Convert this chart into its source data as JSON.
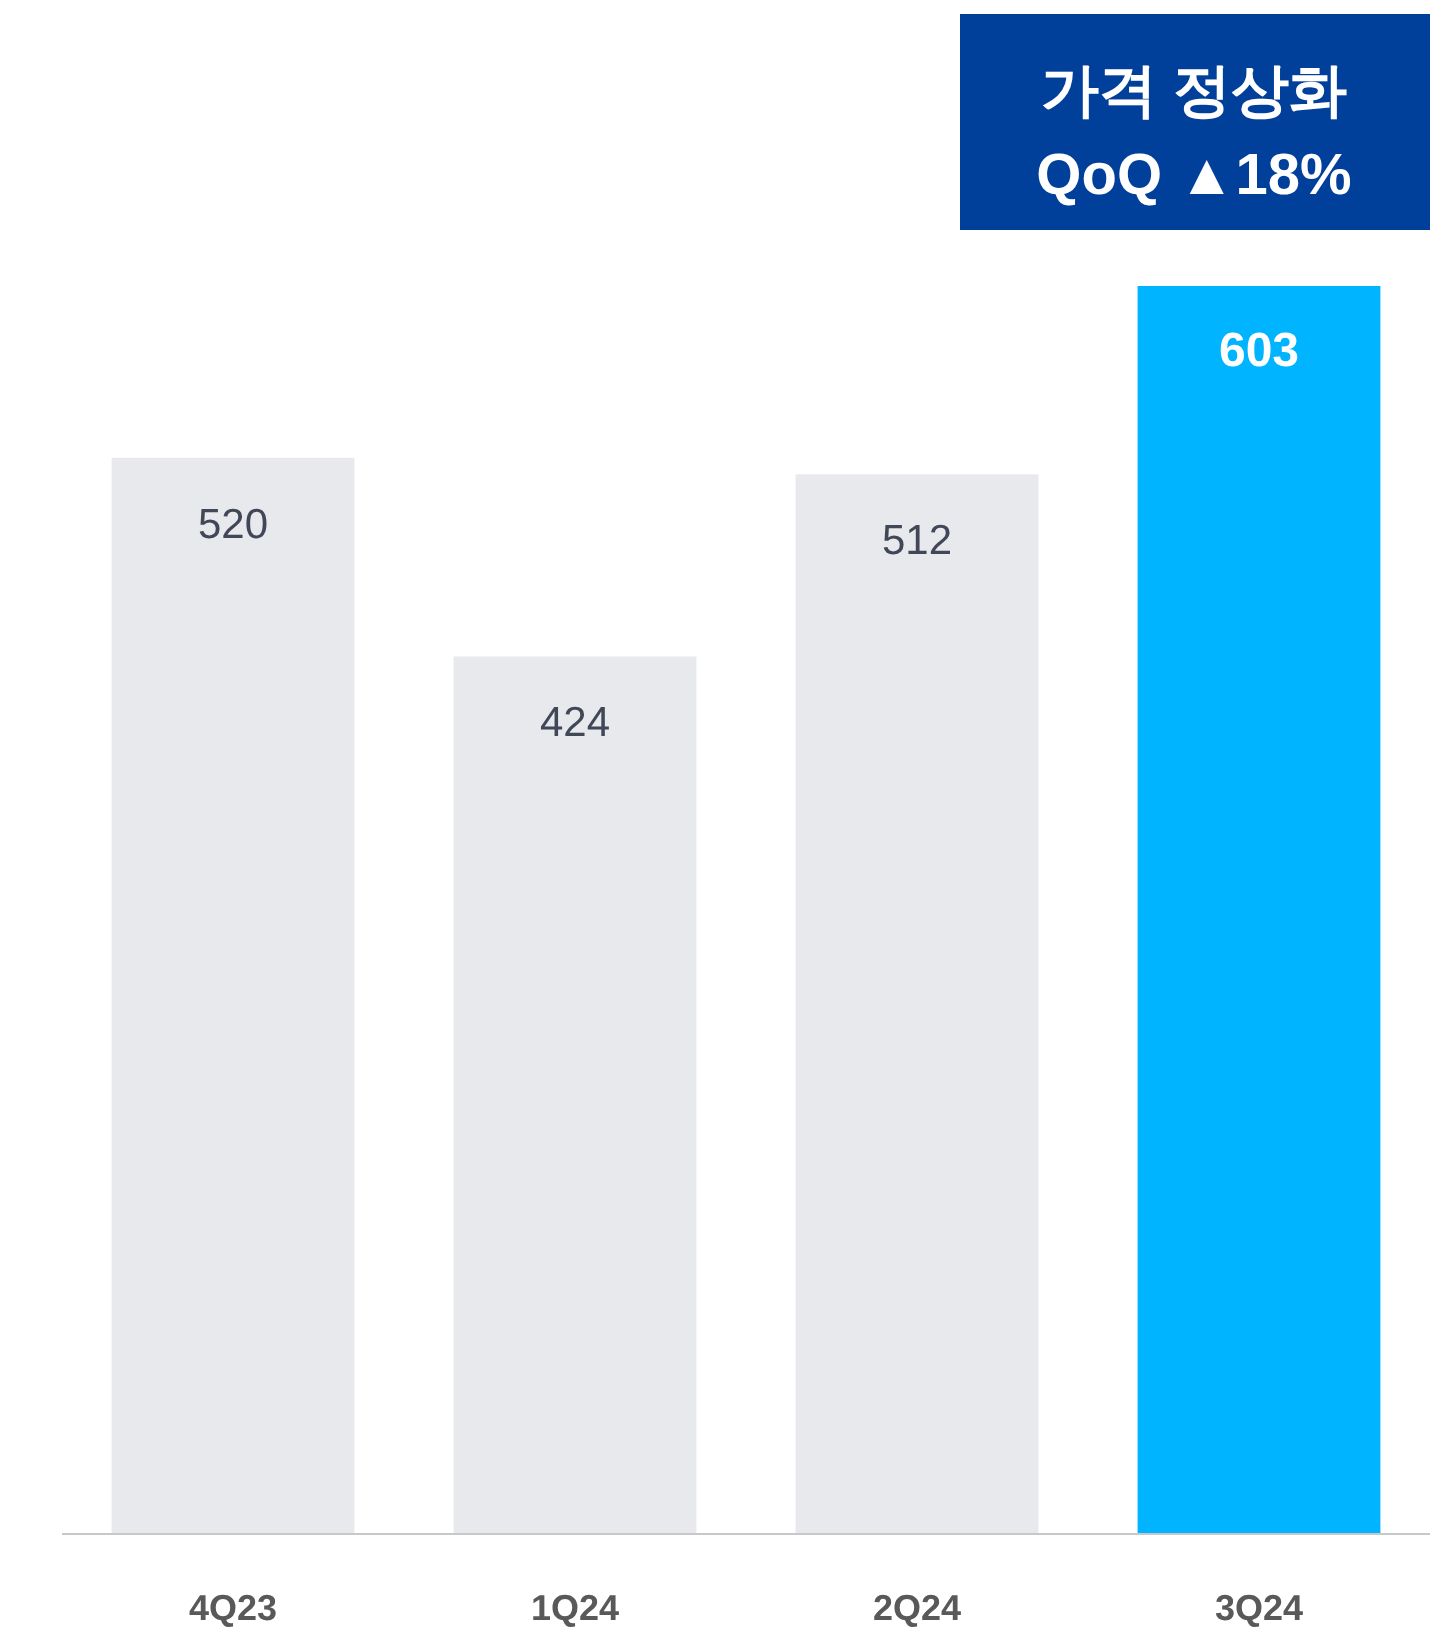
{
  "chart_data": {
    "type": "bar",
    "categories": [
      "4Q23",
      "1Q24",
      "2Q24",
      "3Q24"
    ],
    "values": [
      520,
      424,
      512,
      603
    ],
    "colors": [
      "#e8e9ed",
      "#e8e9ed",
      "#e8e9ed",
      "#00b4ff"
    ],
    "data_labels": true,
    "annotations": [
      "가격 정상화",
      "QoQ ▲18%"
    ]
  }
}
